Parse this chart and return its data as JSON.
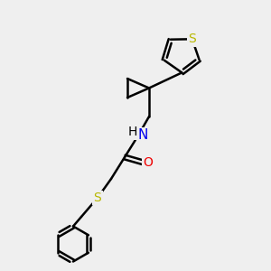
{
  "bg_color": "#efefef",
  "bond_color": "#000000",
  "S_color": "#b8b800",
  "N_color": "#0000ee",
  "O_color": "#ee0000",
  "line_width": 1.8,
  "font_size": 10,
  "xlim": [
    0,
    10
  ],
  "ylim": [
    0,
    10
  ]
}
